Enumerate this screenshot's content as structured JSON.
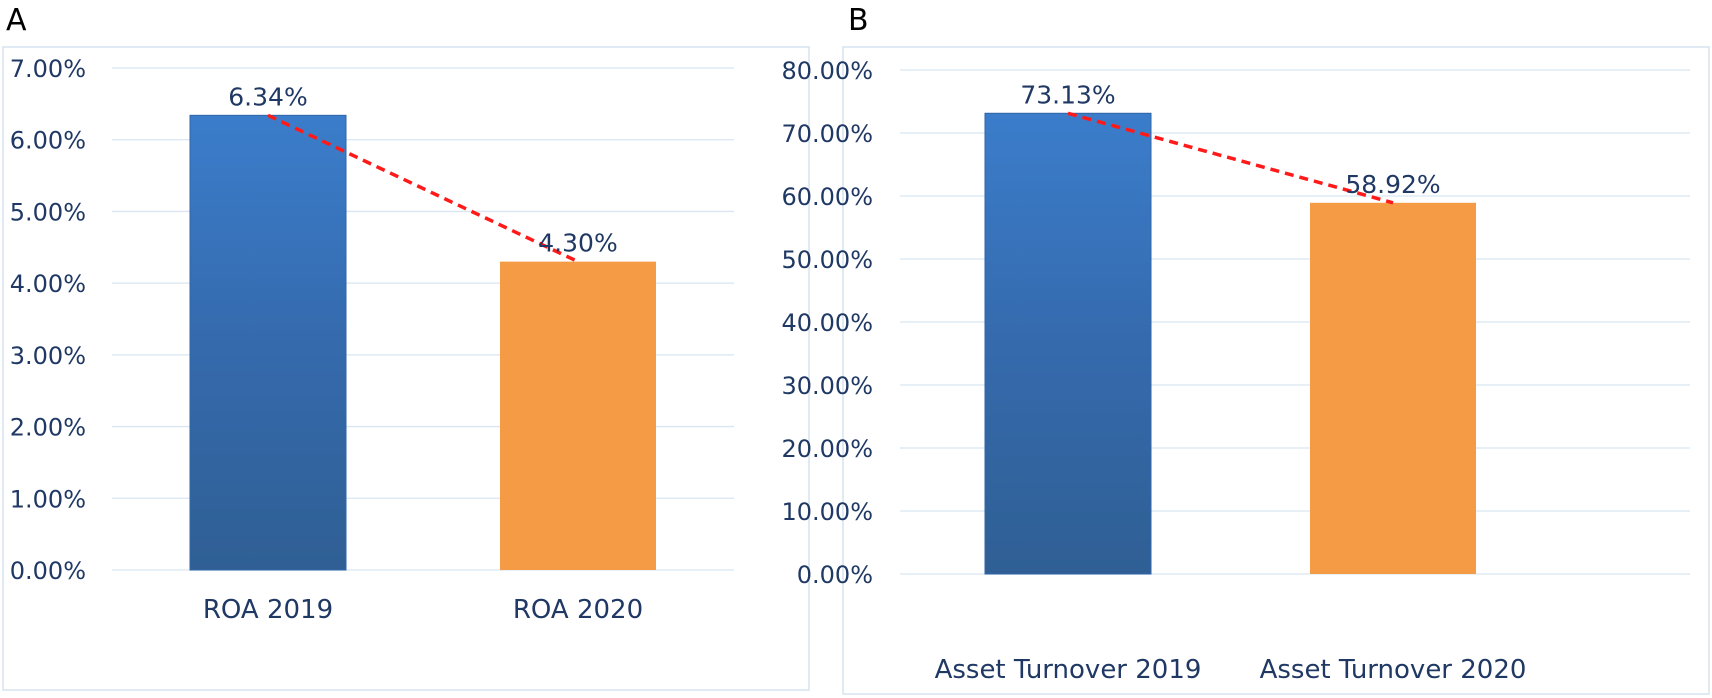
{
  "chart_data": [
    {
      "panel": "A",
      "type": "bar",
      "categories": [
        "ROA 2019",
        "ROA 2020"
      ],
      "values": [
        6.34,
        4.3
      ],
      "data_labels": [
        "6.34%",
        "4.30%"
      ],
      "ylim": [
        0,
        7
      ],
      "yticks": [
        "0.00%",
        "1.00%",
        "2.00%",
        "3.00%",
        "4.00%",
        "5.00%",
        "6.00%",
        "7.00%"
      ],
      "grid": true,
      "trend_line": "dashed",
      "colors": [
        "#3a78c2",
        "#f59a45"
      ]
    },
    {
      "panel": "B",
      "type": "bar",
      "categories": [
        "Asset Turnover 2019",
        "Asset Turnover 2020"
      ],
      "values": [
        73.13,
        58.92
      ],
      "data_labels": [
        "73.13%",
        "58.92%"
      ],
      "ylim": [
        0,
        80
      ],
      "yticks": [
        "0.00%",
        "10.00%",
        "20.00%",
        "30.00%",
        "40.00%",
        "50.00%",
        "60.00%",
        "70.00%",
        "80.00%"
      ],
      "grid": true,
      "trend_line": "dashed",
      "colors": [
        "#3a78c2",
        "#f59a45"
      ]
    }
  ],
  "colors": {
    "text": "#1f3864",
    "grid": "#d9e6f2",
    "trend": "#ff1a1a"
  }
}
